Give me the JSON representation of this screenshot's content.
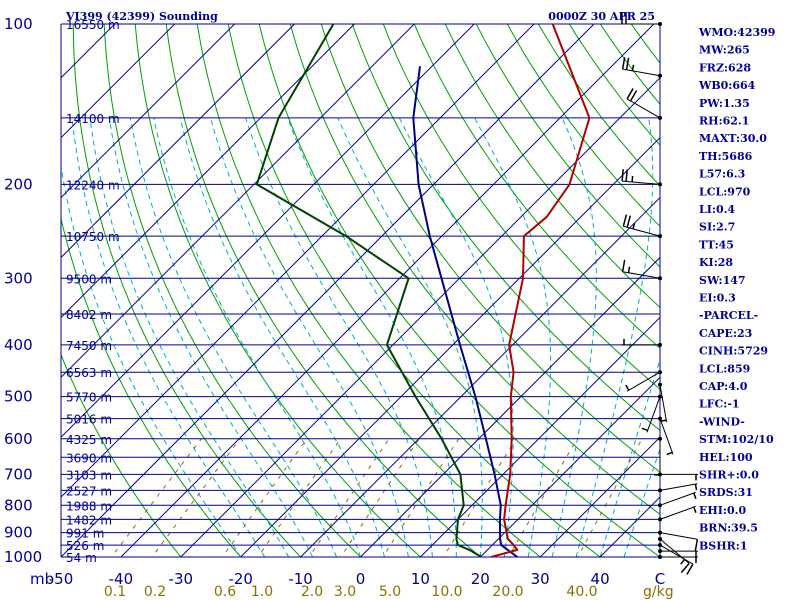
{
  "chart_data": {
    "type": "line",
    "title": "VI399 (42399) Sounding",
    "time_label": "0000Z 30 APR 25",
    "y_axis": {
      "unit_label": "mb",
      "scale": "log",
      "range": [
        1000,
        100
      ],
      "tick_labels": [
        "100",
        "200",
        "300",
        "400",
        "500",
        "600",
        "700",
        "800",
        "900",
        "1000"
      ]
    },
    "x_axis": {
      "range_bottom": [
        -50,
        50
      ],
      "tick_labels": [
        "-50",
        "-40",
        "-30",
        "-20",
        "-10",
        "0",
        "10",
        "20",
        "30",
        "40",
        "C"
      ],
      "skew": true
    },
    "mixing_ratio": {
      "unit_label": "g/kg",
      "tick_labels": [
        "0.1",
        "0.2",
        "0.6",
        "1.0",
        "2.0",
        "3.0",
        "5.0",
        "10.0",
        "20.0",
        "40.0"
      ],
      "values": [
        0.1,
        0.2,
        0.6,
        1.0,
        2.0,
        3.0,
        5.0,
        10.0,
        20.0,
        40.0
      ]
    },
    "height_labels": [
      {
        "p": 100,
        "label": "16550 m"
      },
      {
        "p": 150,
        "label": "14100 m"
      },
      {
        "p": 200,
        "label": "12240 m"
      },
      {
        "p": 250,
        "label": "10750 m"
      },
      {
        "p": 300,
        "label": "9500 m"
      },
      {
        "p": 350,
        "label": "8402 m"
      },
      {
        "p": 400,
        "label": "7450 m"
      },
      {
        "p": 450,
        "label": "6563 m"
      },
      {
        "p": 500,
        "label": "5770 m"
      },
      {
        "p": 550,
        "label": "5016 m"
      },
      {
        "p": 600,
        "label": "4325 m"
      },
      {
        "p": 650,
        "label": "3690 m"
      },
      {
        "p": 700,
        "label": "3103 m"
      },
      {
        "p": 750,
        "label": "2527 m"
      },
      {
        "p": 800,
        "label": "1988 m"
      },
      {
        "p": 850,
        "label": "1482 m"
      },
      {
        "p": 900,
        "label": "991 m"
      },
      {
        "p": 950,
        "label": "526 m"
      },
      {
        "p": 1000,
        "label": "54 m"
      }
    ],
    "series": [
      {
        "name": "Temperature",
        "color": "#000080",
        "points": [
          [
            1000,
            26.2
          ],
          [
            950,
            21.5
          ],
          [
            925,
            20.3
          ],
          [
            850,
            17.0
          ],
          [
            800,
            14.8
          ],
          [
            700,
            8.6
          ],
          [
            600,
            1.2
          ],
          [
            500,
            -7.6
          ],
          [
            400,
            -18.8
          ],
          [
            300,
            -33.0
          ],
          [
            250,
            -42.0
          ],
          [
            200,
            -52.5
          ],
          [
            150,
            -64.5
          ],
          [
            120,
            -72.0
          ]
        ]
      },
      {
        "name": "Dewpoint",
        "color": "#004000",
        "points": [
          [
            1000,
            20.2
          ],
          [
            970,
            17.0
          ],
          [
            950,
            14.3
          ],
          [
            925,
            13.0
          ],
          [
            850,
            10.0
          ],
          [
            800,
            8.6
          ],
          [
            700,
            2.9
          ],
          [
            600,
            -6.2
          ],
          [
            500,
            -17.6
          ],
          [
            400,
            -31.0
          ],
          [
            300,
            -38.5
          ],
          [
            250,
            -56.0
          ],
          [
            200,
            -79.5
          ],
          [
            150,
            -87.0
          ],
          [
            100,
            -93.5
          ]
        ]
      },
      {
        "name": "Parcel",
        "color": "#b00000",
        "points": [
          [
            1000,
            21.8
          ],
          [
            970,
            25.0
          ],
          [
            950,
            23.6
          ],
          [
            925,
            21.6
          ],
          [
            850,
            17.7
          ],
          [
            800,
            15.6
          ],
          [
            700,
            11.2
          ],
          [
            600,
            5.5
          ],
          [
            500,
            -1.7
          ],
          [
            450,
            -5.3
          ],
          [
            400,
            -10.6
          ],
          [
            300,
            -19.4
          ],
          [
            250,
            -26.3
          ],
          [
            230,
            -25.7
          ],
          [
            200,
            -27.3
          ],
          [
            150,
            -35.1
          ],
          [
            100,
            -56.9
          ]
        ]
      }
    ],
    "wind_barbs": [
      {
        "p": 1000,
        "dir": 90,
        "kt": 5
      },
      {
        "p": 975,
        "dir": 90,
        "kt": 5
      },
      {
        "p": 950,
        "dir": 120,
        "kt": 10
      },
      {
        "p": 925,
        "dir": 130,
        "kt": 15
      },
      {
        "p": 900,
        "dir": 100,
        "kt": 10
      },
      {
        "p": 850,
        "dir": 70,
        "kt": 5
      },
      {
        "p": 800,
        "dir": 70,
        "kt": 5
      },
      {
        "p": 750,
        "dir": 80,
        "kt": 5
      },
      {
        "p": 700,
        "dir": 90,
        "kt": 5
      },
      {
        "p": 600,
        "dir": 180,
        "kt": 5
      },
      {
        "p": 550,
        "dir": 160,
        "kt": 5
      },
      {
        "p": 500,
        "dir": 200,
        "kt": 5
      },
      {
        "p": 475,
        "dir": 170,
        "kt": 5
      },
      {
        "p": 450,
        "dir": 240,
        "kt": 5
      },
      {
        "p": 400,
        "dir": 270,
        "kt": 5
      },
      {
        "p": 300,
        "dir": 280,
        "kt": 15
      },
      {
        "p": 250,
        "dir": 285,
        "kt": 25
      },
      {
        "p": 200,
        "dir": 275,
        "kt": 25
      },
      {
        "p": 150,
        "dir": 300,
        "kt": 20
      },
      {
        "p": 125,
        "dir": 280,
        "kt": 25
      },
      {
        "p": 100,
        "dir": 270,
        "kt": 20
      }
    ],
    "indices": [
      "WMO:42399",
      "MW:265",
      "FRZ:628",
      "WB0:664",
      "PW:1.35",
      "RH:62.1",
      "MAXT:30.0",
      "TH:5686",
      "L57:6.3",
      "LCL:970",
      "LI:0.4",
      "SI:2.7",
      "TT:45",
      "KI:28",
      "SW:147",
      "EI:0.3",
      "-PARCEL-",
      "CAPE:23",
      "CINH:5729",
      "LCL:859",
      "CAP:4.0",
      "LFC:-1",
      "-WIND-",
      "STM:102/10",
      "HEL:100",
      "SHR+:0.0",
      "SRDS:31",
      "EHI:0.0",
      "BRN:39.5",
      "BSHR:1"
    ],
    "colors": {
      "isobar": "#000090",
      "isotherm": "#000090",
      "dry_adiabat": "#00a000",
      "moist_adiabat": "#00b0b8",
      "mixing_ratio": "#8a7000",
      "barb": "#000000"
    }
  }
}
